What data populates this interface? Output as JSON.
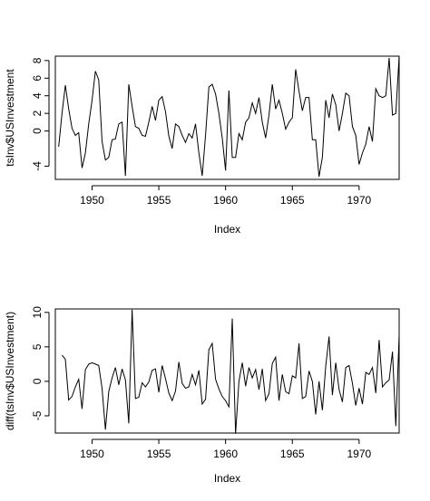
{
  "chart_data": [
    {
      "type": "line",
      "xlabel": "Index",
      "ylabel": "tsInv$USInvestment",
      "xlim": [
        1947.25,
        1973.0
      ],
      "ylim": [
        -5.5,
        8.5
      ],
      "xticks": [
        1950,
        1955,
        1960,
        1965,
        1970
      ],
      "xtick_labels": [
        "1950",
        "1955",
        "1960",
        "1965",
        "1970"
      ],
      "yticks": [
        -4,
        0,
        2,
        4,
        6,
        8
      ],
      "ytick_labels": [
        "-4",
        "0",
        "2",
        "4",
        "6",
        "8"
      ],
      "x": [
        1947.5,
        1947.75,
        1948.0,
        1948.25,
        1948.5,
        1948.75,
        1949.0,
        1949.25,
        1949.5,
        1949.75,
        1950.0,
        1950.25,
        1950.5,
        1950.75,
        1951.0,
        1951.25,
        1951.5,
        1951.75,
        1952.0,
        1952.25,
        1952.5,
        1952.75,
        1953.0,
        1953.25,
        1953.5,
        1953.75,
        1954.0,
        1954.25,
        1954.5,
        1954.75,
        1955.0,
        1955.25,
        1955.5,
        1955.75,
        1956.0,
        1956.25,
        1956.5,
        1956.75,
        1957.0,
        1957.25,
        1957.5,
        1957.75,
        1958.0,
        1958.25,
        1958.5,
        1958.75,
        1959.0,
        1959.25,
        1959.5,
        1959.75,
        1960.0,
        1960.25,
        1960.5,
        1960.75,
        1961.0,
        1961.25,
        1961.5,
        1961.75,
        1962.0,
        1962.25,
        1962.5,
        1962.75,
        1963.0,
        1963.25,
        1963.5,
        1963.75,
        1964.0,
        1964.25,
        1964.5,
        1964.75,
        1965.0,
        1965.25,
        1965.5,
        1965.75,
        1966.0,
        1966.25,
        1966.5,
        1966.75,
        1967.0,
        1967.25,
        1967.5,
        1967.75,
        1968.0,
        1968.25,
        1968.5,
        1968.75,
        1969.0,
        1969.25,
        1969.5,
        1969.75,
        1970.0,
        1970.25,
        1970.5,
        1970.75,
        1971.0,
        1971.25,
        1971.5,
        1971.75,
        1972.0,
        1972.25,
        1972.5,
        1972.75,
        1973.0
      ],
      "series": [
        {
          "values": [
            -1.8,
            2.0,
            5.2,
            2.5,
            0.3,
            -0.5,
            -0.2,
            -4.2,
            -2.5,
            0.8,
            3.5,
            6.8,
            5.8,
            -1.2,
            -3.3,
            -3.0,
            -1.0,
            -0.9,
            0.8,
            1.0,
            -5.1,
            5.3,
            2.8,
            0.5,
            0.3,
            -0.5,
            -0.6,
            1.0,
            2.8,
            1.2,
            3.5,
            3.9,
            2.2,
            -0.6,
            -2.0,
            0.8,
            0.5,
            -0.5,
            -1.3,
            -0.3,
            -0.8,
            0.8,
            -2.5,
            -5.1,
            -0.5,
            5.0,
            5.3,
            4.2,
            2.0,
            -0.8,
            -4.5,
            4.6,
            -3.0,
            -3.0,
            -0.3,
            -1.0,
            1.0,
            1.5,
            3.2,
            2.0,
            3.8,
            1.0,
            -0.8,
            1.8,
            5.3,
            2.5,
            3.5,
            2.0,
            0.2,
            1.0,
            1.5,
            7.0,
            4.5,
            2.3,
            3.8,
            3.8,
            -1.0,
            -1.0,
            -5.2,
            -3.0,
            3.5,
            1.5,
            4.2,
            3.0,
            0.0,
            2.0,
            4.3,
            4.0,
            0.5,
            -0.5,
            -3.8,
            -2.5,
            -1.5,
            0.5,
            -1.2,
            4.8,
            4.0,
            3.8,
            4.0,
            8.3,
            1.8,
            2.0,
            8.5
          ]
        }
      ]
    },
    {
      "type": "line",
      "xlabel": "Index",
      "ylabel": "diff(tsInv$USInvestment)",
      "xlim": [
        1947.25,
        1973.0
      ],
      "ylim": [
        -7.5,
        10.5
      ],
      "xticks": [
        1950,
        1955,
        1960,
        1965,
        1970
      ],
      "xtick_labels": [
        "1950",
        "1955",
        "1960",
        "1965",
        "1970"
      ],
      "yticks": [
        -5,
        0,
        5,
        10
      ],
      "ytick_labels": [
        "-5",
        "0",
        "5",
        "10"
      ],
      "x": [
        1947.75,
        1948.0,
        1948.25,
        1948.5,
        1948.75,
        1949.0,
        1949.25,
        1949.5,
        1949.75,
        1950.0,
        1950.25,
        1950.5,
        1950.75,
        1951.0,
        1951.25,
        1951.5,
        1951.75,
        1952.0,
        1952.25,
        1952.5,
        1952.75,
        1953.0,
        1953.25,
        1953.5,
        1953.75,
        1954.0,
        1954.25,
        1954.5,
        1954.75,
        1955.0,
        1955.25,
        1955.5,
        1955.75,
        1956.0,
        1956.25,
        1956.5,
        1956.75,
        1957.0,
        1957.25,
        1957.5,
        1957.75,
        1958.0,
        1958.25,
        1958.5,
        1958.75,
        1959.0,
        1959.25,
        1959.5,
        1959.75,
        1960.0,
        1960.25,
        1960.5,
        1960.75,
        1961.0,
        1961.25,
        1961.5,
        1961.75,
        1962.0,
        1962.25,
        1962.5,
        1962.75,
        1963.0,
        1963.25,
        1963.5,
        1963.75,
        1964.0,
        1964.25,
        1964.5,
        1964.75,
        1965.0,
        1965.25,
        1965.5,
        1965.75,
        1966.0,
        1966.25,
        1966.5,
        1966.75,
        1967.0,
        1967.25,
        1967.5,
        1967.75,
        1968.0,
        1968.25,
        1968.5,
        1968.75,
        1969.0,
        1969.25,
        1969.5,
        1969.75,
        1970.0,
        1970.25,
        1970.5,
        1970.75,
        1971.0,
        1971.25,
        1971.5,
        1971.75,
        1972.0,
        1972.25,
        1972.5,
        1972.75,
        1973.0
      ],
      "series": [
        {
          "values": [
            3.8,
            3.2,
            -2.7,
            -2.2,
            -0.8,
            0.3,
            -4.0,
            1.7,
            2.5,
            2.7,
            2.5,
            2.3,
            -1.0,
            -7.0,
            -1.5,
            0.5,
            2.0,
            -0.5,
            1.8,
            0.2,
            -6.1,
            10.4,
            -2.5,
            -2.3,
            -0.2,
            -0.8,
            -0.1,
            1.6,
            1.8,
            -1.6,
            2.3,
            0.4,
            -1.7,
            -2.8,
            -1.4,
            2.8,
            -0.3,
            -1.0,
            -0.8,
            1.0,
            -0.5,
            1.6,
            -3.3,
            -2.6,
            4.6,
            5.5,
            0.3,
            -1.1,
            -2.2,
            -2.8,
            -3.7,
            9.1,
            -7.6,
            0.0,
            2.7,
            -0.7,
            2.0,
            0.5,
            1.7,
            -1.2,
            1.8,
            -2.8,
            -1.8,
            2.6,
            3.5,
            -2.8,
            1.0,
            -1.5,
            -1.8,
            0.8,
            0.5,
            5.5,
            -2.5,
            -2.2,
            1.5,
            0.0,
            -4.8,
            0.0,
            -4.2,
            2.2,
            6.5,
            -2.0,
            2.7,
            -1.2,
            -3.0,
            2.0,
            2.3,
            -0.3,
            -3.5,
            -1.0,
            -3.3,
            1.3,
            1.0,
            2.0,
            -1.7,
            6.0,
            -0.8,
            -0.2,
            0.2,
            4.3,
            -6.5,
            6.7
          ]
        }
      ]
    }
  ]
}
